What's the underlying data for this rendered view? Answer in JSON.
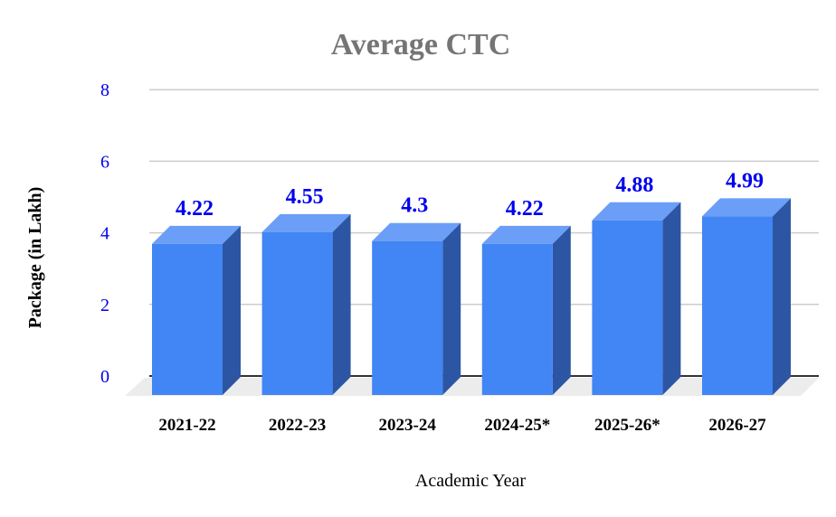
{
  "chart_data": {
    "type": "bar",
    "style": "3d",
    "title": "Average CTC",
    "xlabel": "Academic Year",
    "ylabel": "Package (in Lakh)",
    "categories": [
      "2021-22",
      "2022-23",
      "2023-24",
      "2024-25*",
      "2025-26*",
      "2026-27"
    ],
    "values": [
      4.22,
      4.55,
      4.3,
      4.22,
      4.88,
      4.99
    ],
    "data_labels": [
      "4.22",
      "4.55",
      "4.3",
      "4.22",
      "4.88",
      "4.99"
    ],
    "ylim": [
      0,
      8
    ],
    "yticks": [
      "0",
      "2",
      "4",
      "6",
      "8"
    ],
    "grid": true,
    "colors": {
      "front": "#4285f4",
      "top": "#6b9ef6",
      "side": "#2c56a3",
      "floor": "#ececec",
      "label": "#0000ee",
      "title": "#757575"
    }
  }
}
